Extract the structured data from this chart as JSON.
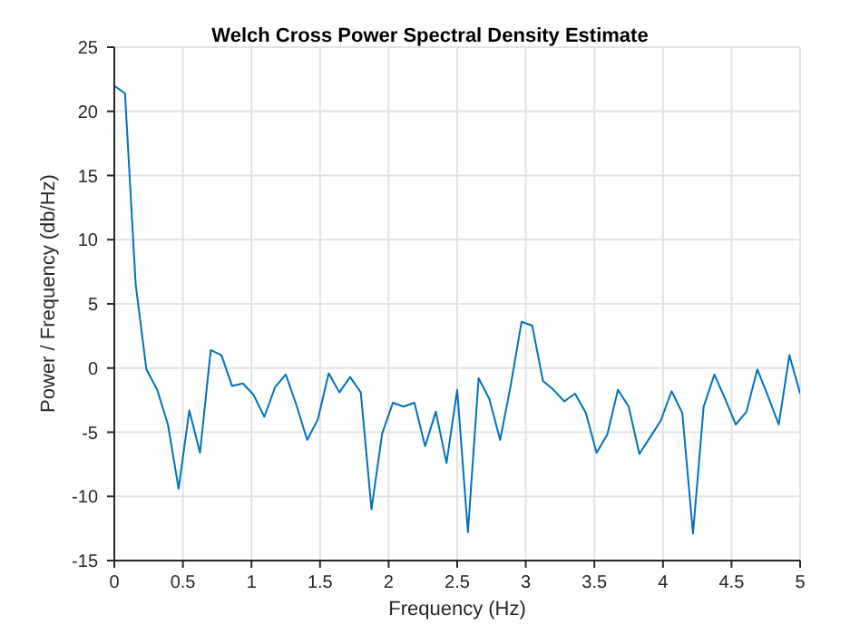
{
  "chart_data": {
    "type": "line",
    "title": "Welch Cross Power Spectral Density Estimate",
    "xlabel": "Frequency (Hz)",
    "ylabel": "Power / Frequency (db/Hz)",
    "x": [
      0,
      0.078,
      0.156,
      0.234,
      0.313,
      0.391,
      0.469,
      0.547,
      0.625,
      0.703,
      0.781,
      0.859,
      0.938,
      1.016,
      1.094,
      1.172,
      1.25,
      1.328,
      1.406,
      1.484,
      1.563,
      1.641,
      1.719,
      1.797,
      1.875,
      1.953,
      2.031,
      2.109,
      2.188,
      2.266,
      2.344,
      2.422,
      2.5,
      2.578,
      2.656,
      2.734,
      2.813,
      2.891,
      2.969,
      3.047,
      3.125,
      3.203,
      3.281,
      3.359,
      3.438,
      3.516,
      3.594,
      3.672,
      3.75,
      3.828,
      3.906,
      3.984,
      4.063,
      4.141,
      4.219,
      4.297,
      4.375,
      4.453,
      4.531,
      4.609,
      4.688,
      4.766,
      4.844,
      4.922,
      5
    ],
    "series": [
      {
        "color": "#0072bd",
        "values": [
          22.0,
          21.4,
          6.5,
          -0.1,
          -1.7,
          -4.4,
          -9.4,
          -3.3,
          -6.6,
          1.4,
          1.0,
          -1.4,
          -1.2,
          -2.1,
          -3.8,
          -1.5,
          -0.5,
          -2.9,
          -5.6,
          -4.0,
          -0.4,
          -1.9,
          -0.7,
          -1.9,
          -11.0,
          -5.1,
          -2.7,
          -3.0,
          -2.7,
          -6.1,
          -3.4,
          -7.4,
          -1.7,
          -12.8,
          -0.8,
          -2.4,
          -5.6,
          -1.3,
          3.6,
          3.3,
          -1.0,
          -1.7,
          -2.6,
          -2.0,
          -3.5,
          -6.6,
          -5.2,
          -1.7,
          -3.0,
          -6.7,
          -5.4,
          -4.1,
          -1.8,
          -3.5,
          -12.9,
          -3.0,
          -0.5,
          -2.4,
          -4.4,
          -3.4,
          -0.1,
          -2.2,
          -4.4,
          1.0,
          -2.0
        ]
      }
    ],
    "xlim": [
      0,
      5
    ],
    "xticks": [
      0,
      0.5,
      1,
      1.5,
      2,
      2.5,
      3,
      3.5,
      4,
      4.5,
      5
    ],
    "ylim": [
      -15,
      25
    ],
    "yticks": [
      -15,
      -10,
      -5,
      0,
      5,
      10,
      15,
      20,
      25
    ],
    "grid": true
  }
}
